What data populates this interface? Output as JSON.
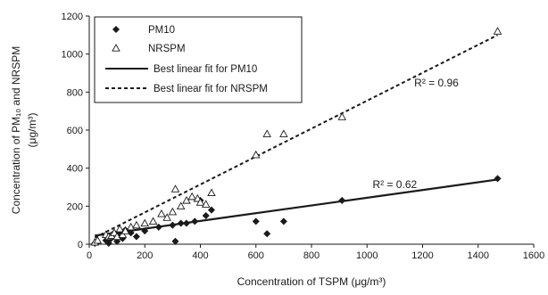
{
  "chart_data": {
    "type": "scatter",
    "xlabel": "Concentration of TSPM (μg/m³)",
    "ylabel": "Concentration of PM₁₀ and NRSPM",
    "ylabel_unit": "(μg/m³)",
    "xlim": [
      0,
      1600
    ],
    "ylim": [
      0,
      1200
    ],
    "xticks": [
      "0",
      "200",
      "400",
      "600",
      "800",
      "1000",
      "1200",
      "1400",
      "1600"
    ],
    "yticks": [
      "0",
      "200",
      "400",
      "600",
      "800",
      "1000",
      "1200"
    ],
    "grid": false,
    "legend_position": "top-left",
    "series": [
      {
        "name": "PM10",
        "marker": "diamond",
        "color": "#1a1a1a",
        "points": [
          [
            20,
            5
          ],
          [
            30,
            10
          ],
          [
            60,
            20
          ],
          [
            70,
            5
          ],
          [
            75,
            25
          ],
          [
            80,
            45
          ],
          [
            90,
            60
          ],
          [
            100,
            15
          ],
          [
            110,
            50
          ],
          [
            120,
            30
          ],
          [
            130,
            75
          ],
          [
            150,
            60
          ],
          [
            170,
            40
          ],
          [
            200,
            70
          ],
          [
            250,
            90
          ],
          [
            300,
            100
          ],
          [
            310,
            15
          ],
          [
            330,
            110
          ],
          [
            350,
            110
          ],
          [
            380,
            120
          ],
          [
            400,
            230
          ],
          [
            420,
            150
          ],
          [
            440,
            180
          ],
          [
            600,
            120
          ],
          [
            640,
            55
          ],
          [
            700,
            120
          ],
          [
            910,
            230
          ],
          [
            1470,
            345
          ]
        ]
      },
      {
        "name": "NRSPM",
        "marker": "triangle",
        "color": "#1a1a1a",
        "points": [
          [
            20,
            10
          ],
          [
            30,
            20
          ],
          [
            60,
            50
          ],
          [
            70,
            40
          ],
          [
            80,
            45
          ],
          [
            90,
            60
          ],
          [
            100,
            40
          ],
          [
            110,
            80
          ],
          [
            120,
            50
          ],
          [
            130,
            70
          ],
          [
            150,
            90
          ],
          [
            170,
            100
          ],
          [
            200,
            110
          ],
          [
            230,
            120
          ],
          [
            260,
            160
          ],
          [
            280,
            140
          ],
          [
            300,
            170
          ],
          [
            310,
            290
          ],
          [
            330,
            200
          ],
          [
            350,
            230
          ],
          [
            370,
            250
          ],
          [
            390,
            240
          ],
          [
            400,
            220
          ],
          [
            420,
            210
          ],
          [
            440,
            270
          ],
          [
            600,
            470
          ],
          [
            640,
            580
          ],
          [
            700,
            580
          ],
          [
            910,
            670
          ],
          [
            1470,
            1120
          ]
        ]
      },
      {
        "name": "Best linear fit for PM10",
        "kind": "line",
        "style": "solid",
        "x": [
          20,
          1470
        ],
        "y": [
          45,
          340
        ],
        "annotation": "R² = 0.62",
        "annotation_at": [
          1020,
          295
        ]
      },
      {
        "name": "Best linear fit for NRSPM",
        "kind": "line",
        "style": "dashed",
        "x": [
          20,
          1470
        ],
        "y": [
          35,
          1100
        ],
        "annotation": "R² = 0.96",
        "annotation_at": [
          1170,
          830
        ]
      }
    ]
  }
}
